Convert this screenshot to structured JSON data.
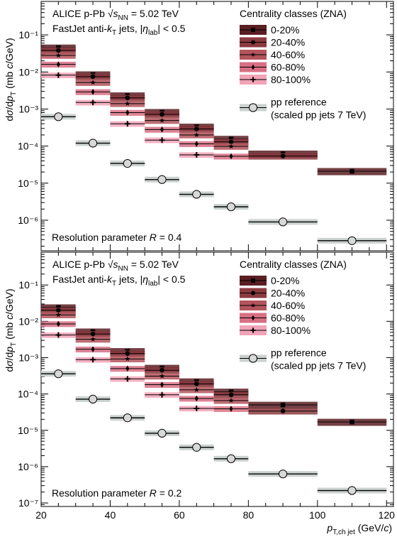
{
  "x_axis": {
    "label_main": "p",
    "label_sub": "T,ch jet",
    "label_unit": " (GeV/",
    "label_unit_c": "c",
    "label_close": ")",
    "ticks": [
      20,
      40,
      60,
      80,
      100,
      120
    ]
  },
  "y_axis_label": {
    "part1": "d",
    "sigma": "σ",
    "part2": "/d",
    "p": "p",
    "sub": "T",
    "unit_open": " (mb ",
    "unit_c": "c",
    "unit_close": "/GeV)"
  },
  "legend": {
    "header": "Centrality classes (ZNA)",
    "entries": [
      "0-20%",
      "20-40%",
      "40-60%",
      "60-80%",
      "80-100%"
    ],
    "pp_line1": "pp reference",
    "pp_line2": "(scaled pp jets 7 TeV)"
  },
  "header": {
    "experiment": "ALICE p-Pb ",
    "sqrt_symbol": "√",
    "s": "s",
    "nn": "NN",
    "energy": " = 5.02 TeV",
    "line2_a": "FastJet anti-",
    "k": "k",
    "t": "T",
    "line2_b": " jets, |",
    "eta": "η",
    "lab": "lab",
    "line2_c": "| < 0.5"
  },
  "colors": {
    "c0": "#5a1e23",
    "c1": "#8c3a3f",
    "c2": "#b4545c",
    "c3": "#d86f84",
    "c4": "#f2a3b7",
    "pp_band": "#cbd2d0",
    "pp_marker": "#d8d8d8"
  },
  "chart_data": [
    {
      "type": "scatter",
      "panel": "top",
      "x_scale": "linear",
      "y_scale": "log",
      "xlim": [
        20,
        122
      ],
      "ylim": [
        1.5e-07,
        0.8
      ],
      "y_tick_labels": [
        "10⁻⁶",
        "10⁻⁵",
        "10⁻⁴",
        "10⁻³",
        "10⁻²",
        "10⁻¹"
      ],
      "annotation": "Resolution parameter R = 0.4",
      "annotation_text": "Resolution parameter ",
      "annotation_R": "R",
      "annotation_val": " = 0.4",
      "bins": [
        [
          20,
          30
        ],
        [
          30,
          40
        ],
        [
          40,
          50
        ],
        [
          50,
          60
        ],
        [
          60,
          70
        ],
        [
          70,
          80
        ],
        [
          80,
          100
        ],
        [
          100,
          120
        ]
      ],
      "x": [
        25,
        35,
        45,
        55,
        65,
        75,
        90,
        110
      ],
      "series": [
        {
          "name": "0-20%",
          "marker": "square",
          "values": [
            0.045,
            0.0085,
            0.0023,
            0.00082,
            0.00033,
            0.000155,
            6.2e-05,
            2.1e-05
          ]
        },
        {
          "name": "20-40%",
          "marker": "circle",
          "values": [
            0.038,
            0.0075,
            0.002,
            0.00072,
            0.00029,
            0.00013,
            5.4e-05,
            null
          ]
        },
        {
          "name": "40-60%",
          "marker": "star",
          "values": [
            0.028,
            0.0052,
            0.0014,
            0.00049,
            0.0002,
            9.8e-05,
            null,
            null
          ]
        },
        {
          "name": "60-80%",
          "marker": "diamond",
          "values": [
            0.016,
            0.0029,
            0.0008,
            0.00028,
            0.000115,
            5.3e-05,
            null,
            null
          ]
        },
        {
          "name": "80-100%",
          "marker": "cross",
          "values": [
            0.0082,
            0.0015,
            0.0004,
            0.000145,
            5.8e-05,
            null,
            null,
            null
          ]
        },
        {
          "name": "pp reference",
          "marker": "open-circle",
          "values": [
            0.00062,
            0.00012,
            3.4e-05,
            1.25e-05,
            5e-06,
            2.3e-06,
            9e-07,
            2.8e-07
          ]
        }
      ]
    },
    {
      "type": "scatter",
      "panel": "bottom",
      "x_scale": "linear",
      "y_scale": "log",
      "xlim": [
        20,
        122
      ],
      "ylim": [
        8e-08,
        0.8
      ],
      "y_tick_labels": [
        "10⁻⁷",
        "10⁻⁶",
        "10⁻⁵",
        "10⁻⁴",
        "10⁻³",
        "10⁻²",
        "10⁻¹"
      ],
      "annotation": "Resolution parameter R = 0.2",
      "annotation_text": "Resolution parameter ",
      "annotation_R": "R",
      "annotation_val": " = 0.2",
      "bins": [
        [
          20,
          30
        ],
        [
          30,
          40
        ],
        [
          40,
          50
        ],
        [
          50,
          60
        ],
        [
          60,
          70
        ],
        [
          70,
          80
        ],
        [
          80,
          100
        ],
        [
          100,
          120
        ]
      ],
      "x": [
        25,
        35,
        45,
        55,
        65,
        75,
        90,
        110
      ],
      "series": [
        {
          "name": "0-20%",
          "marker": "square",
          "values": [
            0.024,
            0.0052,
            0.0015,
            0.00052,
            0.00022,
            0.000115,
            5e-05,
            1.7e-05
          ]
        },
        {
          "name": "20-40%",
          "marker": "circle",
          "values": [
            0.02,
            0.0045,
            0.0013,
            0.00045,
            0.00019,
            9.5e-05,
            3.4e-05,
            null
          ]
        },
        {
          "name": "40-60%",
          "marker": "star",
          "values": [
            0.015,
            0.0032,
            0.00092,
            0.00031,
            0.00013,
            6.6e-05,
            null,
            null
          ]
        },
        {
          "name": "60-80%",
          "marker": "diamond",
          "values": [
            0.0085,
            0.0017,
            0.0005,
            0.00018,
            7.5e-05,
            3.9e-05,
            null,
            null
          ]
        },
        {
          "name": "80-100%",
          "marker": "cross",
          "values": [
            0.0042,
            0.00088,
            0.00026,
            9.5e-05,
            4e-05,
            null,
            null,
            null
          ]
        },
        {
          "name": "pp reference",
          "marker": "open-circle",
          "values": [
            0.00036,
            7.2e-05,
            2.2e-05,
            8.3e-06,
            3.4e-06,
            1.65e-06,
            6.3e-07,
            2.2e-07
          ]
        }
      ]
    }
  ]
}
